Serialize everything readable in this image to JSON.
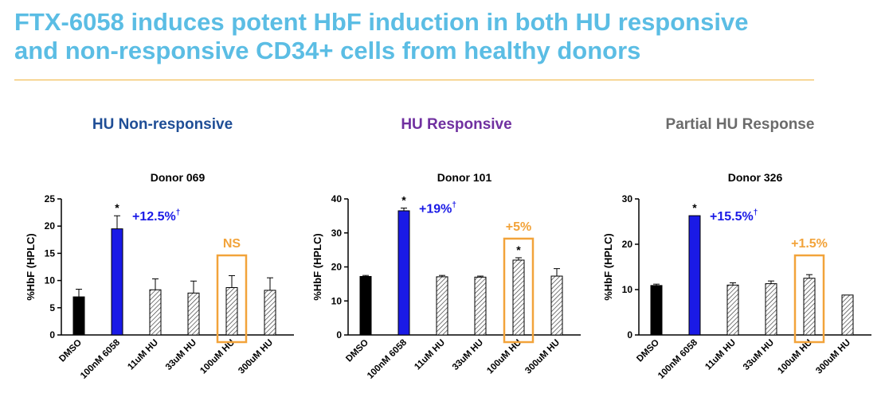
{
  "slide": {
    "title_line1": "FTX-6058 induces potent HbF induction in both HU responsive",
    "title_line2": "and non-responsive CD34+ cells from healthy donors",
    "title_color": "#5bbde4",
    "rule_color": "#f0b43c"
  },
  "colors": {
    "dmso": "#000000",
    "ftx": "#1a1ae6",
    "hu_hatch": "#333333",
    "annotation_blue": "#1a1ae6",
    "annotation_orange": "#f2a33a",
    "panel_blue": "#1f4e96",
    "panel_purple": "#7030a0",
    "panel_gray": "#6b6b6b"
  },
  "chart_data": [
    {
      "type": "bar",
      "panel_label": "HU Non-responsive",
      "title": "Donor 069",
      "ylabel": "%HbF (HPLC)",
      "ylim": [
        0,
        25
      ],
      "yticks": [
        0,
        5,
        10,
        15,
        20,
        25
      ],
      "categories": [
        "DMSO",
        "100nM 6058",
        "11uM HU",
        "33uM HU",
        "100uM HU",
        "300uM HU"
      ],
      "values": [
        7.0,
        19.5,
        8.3,
        7.7,
        8.7,
        8.2
      ],
      "errors": [
        1.4,
        2.4,
        2.0,
        2.2,
        2.2,
        2.3
      ],
      "fills": [
        "solid-black",
        "solid-blue",
        "hatched",
        "hatched",
        "hatched",
        "hatched"
      ],
      "significance": [
        "",
        "*",
        "",
        "",
        "",
        ""
      ],
      "annotations": [
        {
          "text": "+12.5%",
          "dagger": "†",
          "category": "100nM 6058",
          "color": "blue"
        },
        {
          "text": "NS",
          "dagger": "",
          "category": "100uM HU",
          "color": "orange"
        }
      ],
      "highlight_category": "100uM HU"
    },
    {
      "type": "bar",
      "panel_label": "HU Responsive",
      "title": "Donor 101",
      "ylabel": "%HbF (HPLC)",
      "ylim": [
        0,
        40
      ],
      "yticks": [
        0,
        10,
        20,
        30,
        40
      ],
      "categories": [
        "DMSO",
        "100nM 6058",
        "11uM HU",
        "33uM HU",
        "100uM HU",
        "300uM HU"
      ],
      "values": [
        17.2,
        36.5,
        17.1,
        17.0,
        22.0,
        17.3
      ],
      "errors": [
        0.3,
        0.8,
        0.4,
        0.3,
        0.7,
        2.2
      ],
      "fills": [
        "solid-black",
        "solid-blue",
        "hatched",
        "hatched",
        "hatched",
        "hatched"
      ],
      "significance": [
        "",
        "*",
        "",
        "",
        "*",
        ""
      ],
      "annotations": [
        {
          "text": "+19%",
          "dagger": "†",
          "category": "100nM 6058",
          "color": "blue"
        },
        {
          "text": "+5%",
          "dagger": "",
          "category": "100uM HU",
          "color": "orange"
        }
      ],
      "highlight_category": "100uM HU"
    },
    {
      "type": "bar",
      "panel_label": "Partial HU Response",
      "title": "Donor 326",
      "ylabel": "%HbF (HPLC)",
      "ylim": [
        0,
        30
      ],
      "yticks": [
        0,
        10,
        20,
        30
      ],
      "categories": [
        "DMSO",
        "100nM 6058",
        "11uM HU",
        "33uM HU",
        "100uM HU",
        "300uM HU"
      ],
      "values": [
        10.9,
        26.3,
        11.0,
        11.3,
        12.5,
        8.8
      ],
      "errors": [
        0.3,
        0,
        0.5,
        0.6,
        0.8,
        0
      ],
      "fills": [
        "solid-black",
        "solid-blue",
        "hatched",
        "hatched",
        "hatched",
        "hatched"
      ],
      "significance": [
        "",
        "*",
        "",
        "",
        "",
        ""
      ],
      "annotations": [
        {
          "text": "+15.5%",
          "dagger": "†",
          "category": "100nM 6058",
          "color": "blue"
        },
        {
          "text": "+1.5%",
          "dagger": "",
          "category": "100uM HU",
          "color": "orange"
        }
      ],
      "highlight_category": "100uM HU"
    }
  ]
}
